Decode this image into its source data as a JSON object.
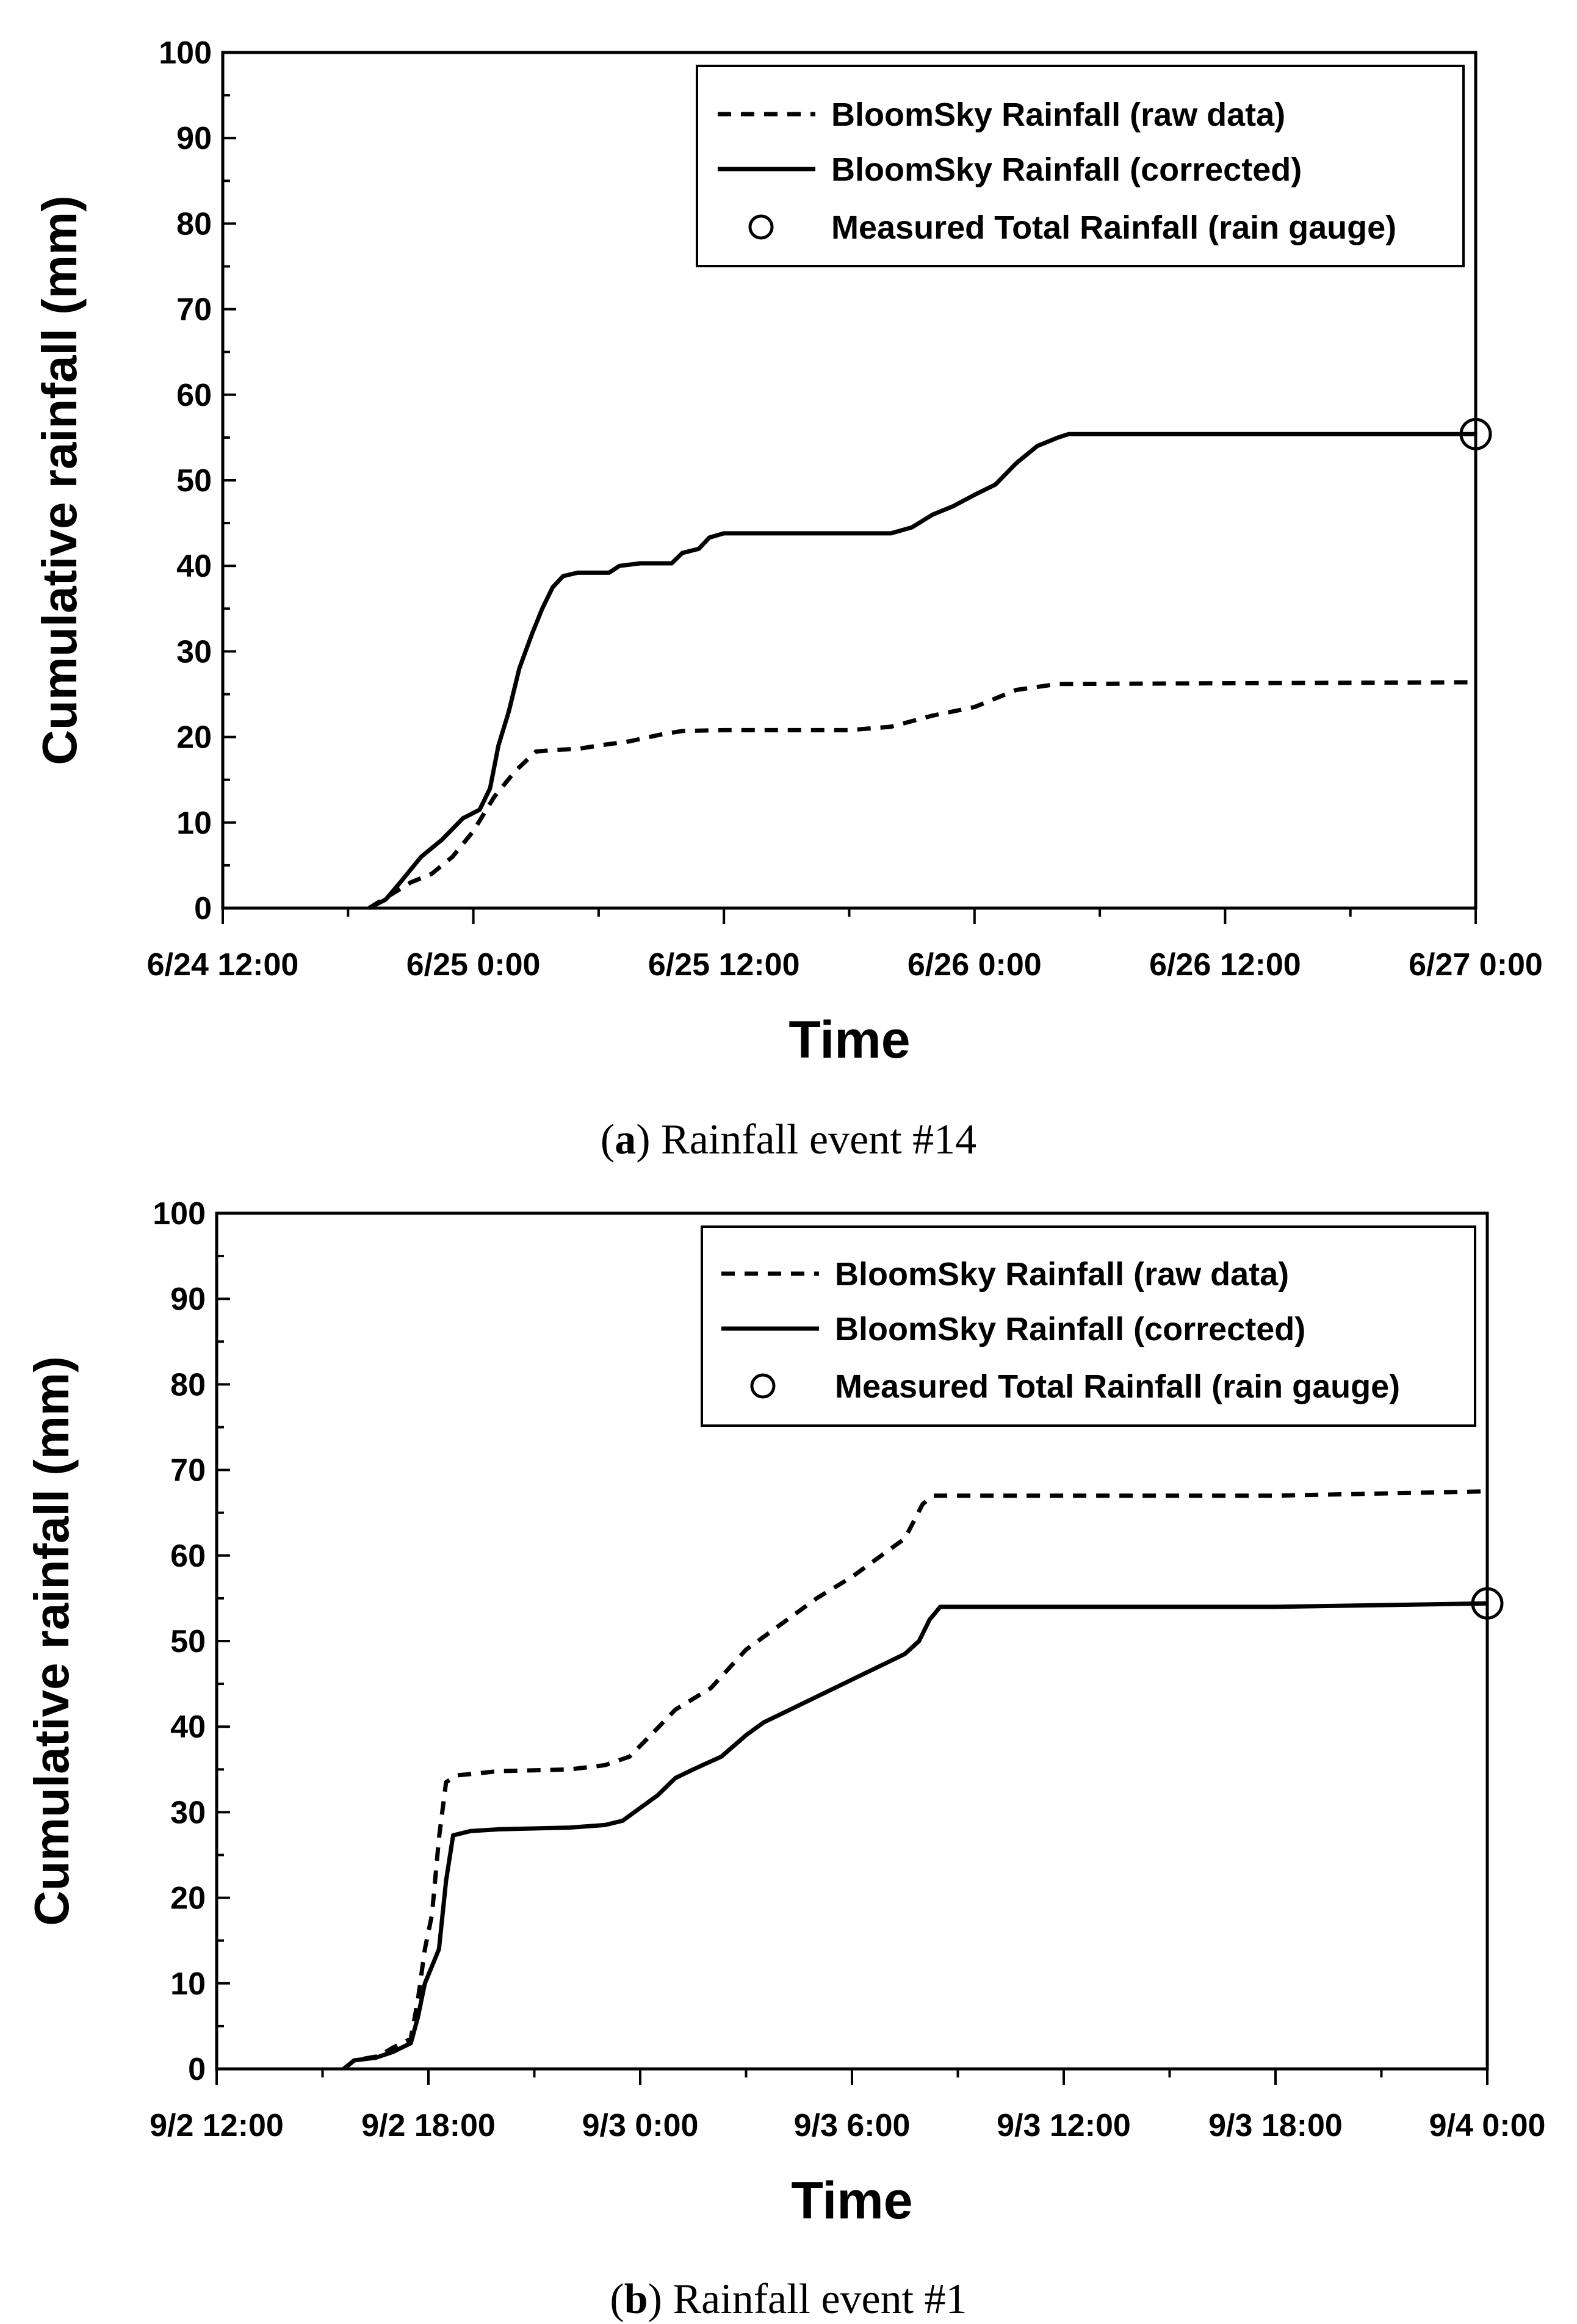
{
  "chart_data": [
    {
      "type": "line",
      "caption_letter": "a",
      "caption_text": ") Rainfall event #14",
      "caption_open": "(",
      "xlabel": "Time",
      "ylabel": "Cumulative rainfall (mm)",
      "ylim": [
        0,
        100
      ],
      "yticks": [
        0,
        10,
        20,
        30,
        40,
        50,
        60,
        70,
        80,
        90,
        100
      ],
      "xlim_hours": [
        0,
        60
      ],
      "x_unit": "hours since 6/24 12:00",
      "xticks": [
        {
          "h": 0,
          "label": "6/24 12:00"
        },
        {
          "h": 12,
          "label": "6/25 0:00"
        },
        {
          "h": 24,
          "label": "6/25 12:00"
        },
        {
          "h": 36,
          "label": "6/26 0:00"
        },
        {
          "h": 48,
          "label": "6/26 12:00"
        },
        {
          "h": 60,
          "label": "6/27 0:00"
        }
      ],
      "legend": [
        {
          "key": "raw",
          "label": "BloomSky Rainfall (raw data)",
          "style": "dashed"
        },
        {
          "key": "corrected",
          "label": "BloomSky Rainfall (corrected)",
          "style": "solid"
        },
        {
          "key": "gauge",
          "label": "Measured Total Rainfall (rain gauge)",
          "style": "circle"
        }
      ],
      "series": [
        {
          "name": "BloomSky Rainfall (raw data)",
          "style": "dashed",
          "points": [
            [
              7,
              0
            ],
            [
              8,
              1.5
            ],
            [
              9,
              3
            ],
            [
              10,
              4
            ],
            [
              11,
              6
            ],
            [
              12,
              9
            ],
            [
              13,
              13
            ],
            [
              14,
              16
            ],
            [
              15,
              18.3
            ],
            [
              16,
              18.5
            ],
            [
              17,
              18.6
            ],
            [
              18,
              19
            ],
            [
              19.5,
              19.5
            ],
            [
              21,
              20.3
            ],
            [
              22,
              20.7
            ],
            [
              24,
              20.8
            ],
            [
              30,
              20.8
            ],
            [
              32,
              21.2
            ],
            [
              34,
              22.5
            ],
            [
              36,
              23.5
            ],
            [
              38,
              25.5
            ],
            [
              40,
              26.2
            ],
            [
              60,
              26.4
            ]
          ]
        },
        {
          "name": "BloomSky Rainfall (corrected)",
          "style": "solid",
          "points": [
            [
              7,
              0
            ],
            [
              7.8,
              1
            ],
            [
              8.5,
              3
            ],
            [
              9.5,
              6
            ],
            [
              10.5,
              8
            ],
            [
              11.5,
              10.5
            ],
            [
              12.3,
              11.5
            ],
            [
              12.8,
              14
            ],
            [
              13.2,
              19
            ],
            [
              13.7,
              23
            ],
            [
              14.2,
              28
            ],
            [
              14.8,
              32
            ],
            [
              15.3,
              35
            ],
            [
              15.8,
              37.5
            ],
            [
              16.3,
              38.8
            ],
            [
              17,
              39.2
            ],
            [
              18.5,
              39.2
            ],
            [
              19,
              40
            ],
            [
              20,
              40.3
            ],
            [
              21.5,
              40.3
            ],
            [
              22,
              41.5
            ],
            [
              22.8,
              42
            ],
            [
              23.3,
              43.3
            ],
            [
              24,
              43.8
            ],
            [
              27,
              43.8
            ],
            [
              32,
              43.8
            ],
            [
              33,
              44.5
            ],
            [
              34,
              46
            ],
            [
              35,
              47
            ],
            [
              36,
              48.3
            ],
            [
              37,
              49.5
            ],
            [
              38,
              52
            ],
            [
              39,
              54
            ],
            [
              40,
              55
            ],
            [
              40.5,
              55.4
            ],
            [
              60,
              55.4
            ]
          ]
        }
      ],
      "gauge_point": {
        "h": 60,
        "value": 55.4
      }
    },
    {
      "type": "line",
      "caption_letter": "b",
      "caption_text": ") Rainfall event #1",
      "caption_open": "(",
      "xlabel": "Time",
      "ylabel": "Cumulative rainfall (mm)",
      "ylim": [
        0,
        100
      ],
      "yticks": [
        0,
        10,
        20,
        30,
        40,
        50,
        60,
        70,
        80,
        90,
        100
      ],
      "xlim_hours": [
        0,
        36
      ],
      "x_unit": "hours since 9/2 12:00",
      "xticks": [
        {
          "h": 0,
          "label": "9/2 12:00"
        },
        {
          "h": 6,
          "label": "9/2 18:00"
        },
        {
          "h": 12,
          "label": "9/3 0:00"
        },
        {
          "h": 18,
          "label": "9/3 6:00"
        },
        {
          "h": 24,
          "label": "9/3 12:00"
        },
        {
          "h": 30,
          "label": "9/3 18:00"
        },
        {
          "h": 36,
          "label": "9/4 0:00"
        }
      ],
      "legend": [
        {
          "key": "raw",
          "label": "BloomSky Rainfall (raw data)",
          "style": "dashed"
        },
        {
          "key": "corrected",
          "label": "BloomSky Rainfall (corrected)",
          "style": "solid"
        },
        {
          "key": "gauge",
          "label": "Measured Total Rainfall (rain gauge)",
          "style": "circle"
        }
      ],
      "series": [
        {
          "name": "BloomSky Rainfall (raw data)",
          "style": "dashed",
          "points": [
            [
              3.6,
              0
            ],
            [
              3.9,
              1
            ],
            [
              4.6,
              1.5
            ],
            [
              5,
              2.5
            ],
            [
              5.5,
              3.5
            ],
            [
              5.7,
              8
            ],
            [
              5.9,
              14
            ],
            [
              6.1,
              18
            ],
            [
              6.3,
              27
            ],
            [
              6.5,
              33.5
            ],
            [
              6.8,
              34.3
            ],
            [
              8,
              34.8
            ],
            [
              10,
              35
            ],
            [
              11,
              35.5
            ],
            [
              11.7,
              36.5
            ],
            [
              12.3,
              39
            ],
            [
              13,
              42
            ],
            [
              14,
              44.5
            ],
            [
              15,
              49
            ],
            [
              16,
              52
            ],
            [
              17,
              55
            ],
            [
              18,
              57.5
            ],
            [
              19,
              60.5
            ],
            [
              19.5,
              62
            ],
            [
              20,
              66
            ],
            [
              20.3,
              67
            ],
            [
              30,
              67
            ],
            [
              36,
              67.5
            ]
          ]
        },
        {
          "name": "BloomSky Rainfall (corrected)",
          "style": "solid",
          "points": [
            [
              3.6,
              0
            ],
            [
              3.9,
              1
            ],
            [
              4.5,
              1.3
            ],
            [
              5,
              2
            ],
            [
              5.5,
              3
            ],
            [
              5.7,
              6
            ],
            [
              5.9,
              10
            ],
            [
              6.1,
              12
            ],
            [
              6.3,
              14
            ],
            [
              6.5,
              22
            ],
            [
              6.7,
              27.3
            ],
            [
              7.2,
              27.8
            ],
            [
              8,
              28
            ],
            [
              10,
              28.2
            ],
            [
              11,
              28.5
            ],
            [
              11.5,
              29
            ],
            [
              12,
              30.5
            ],
            [
              12.5,
              32
            ],
            [
              13,
              34
            ],
            [
              13.5,
              35
            ],
            [
              14.3,
              36.5
            ],
            [
              15,
              39
            ],
            [
              15.5,
              40.5
            ],
            [
              16.5,
              42.5
            ],
            [
              18,
              45.5
            ],
            [
              19,
              47.5
            ],
            [
              19.5,
              48.5
            ],
            [
              19.9,
              50
            ],
            [
              20.2,
              52.5
            ],
            [
              20.5,
              54
            ],
            [
              30,
              54
            ],
            [
              36,
              54.4
            ]
          ]
        }
      ],
      "gauge_point": {
        "h": 36,
        "value": 54.4
      }
    }
  ]
}
